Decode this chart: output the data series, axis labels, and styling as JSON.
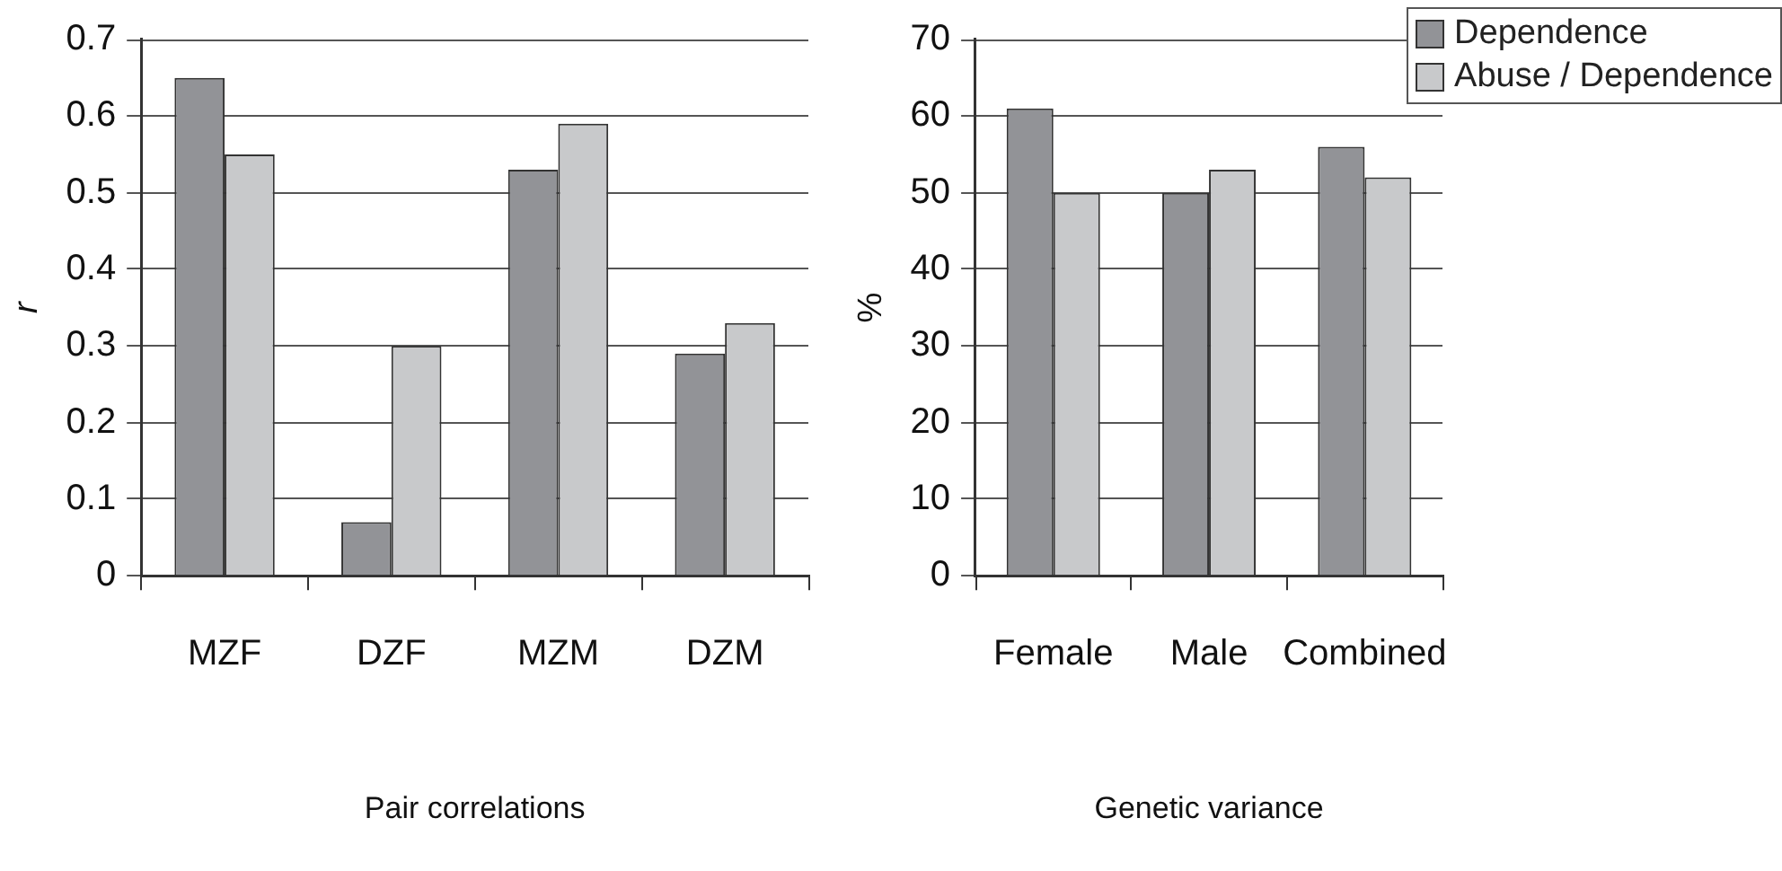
{
  "chart_data": [
    {
      "type": "bar",
      "xlabel": "Pair correlations",
      "ylabel": "r",
      "categories": [
        "MZF",
        "DZF",
        "MZM",
        "DZM"
      ],
      "series": [
        {
          "color": "#929397",
          "values": [
            0.65,
            0.07,
            0.53,
            0.29
          ]
        },
        {
          "color": "#c8c9cb",
          "values": [
            0.55,
            0.3,
            0.59,
            0.33
          ]
        }
      ],
      "ylim": [
        0,
        0.7
      ],
      "yticks": [
        0,
        0.1,
        0.2,
        0.3,
        0.4,
        0.5,
        0.6,
        0.7
      ],
      "grid": "y",
      "legend": false
    },
    {
      "type": "bar",
      "xlabel": "Genetic variance",
      "ylabel": "%",
      "categories": [
        "Female",
        "Male",
        "Combined"
      ],
      "series": [
        {
          "name": "Dependence",
          "color": "#929397",
          "values": [
            61,
            50,
            56
          ]
        },
        {
          "name": "Abuse / Dependence",
          "color": "#c8c9cb",
          "values": [
            50,
            53,
            52
          ]
        }
      ],
      "ylim": [
        0,
        70
      ],
      "yticks": [
        0,
        10,
        20,
        30,
        40,
        50,
        60,
        70
      ],
      "grid": "y",
      "legend": "top right"
    }
  ]
}
